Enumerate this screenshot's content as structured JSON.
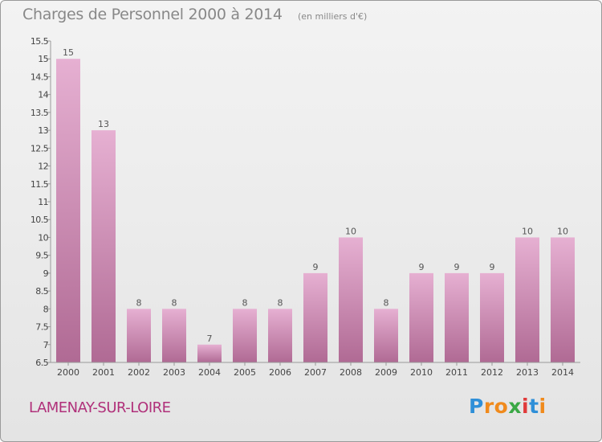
{
  "title": "Charges de Personnel 2000 à 2014",
  "subtitle": "(en milliers d'€)",
  "town": "LAMENAY-SUR-LOIRE",
  "logo": {
    "letters": [
      "P",
      "r",
      "o",
      "x",
      "i",
      "t",
      "i"
    ],
    "colors": [
      "#2f8fd8",
      "#f08a1c",
      "#f08a1c",
      "#3aa845",
      "#e03a3a",
      "#2f8fd8",
      "#f08a1c"
    ]
  },
  "colors": {
    "bar_top": "#e6b0d2",
    "bar_bottom": "#b06a94",
    "bar_label": "#555555",
    "axis_text": "#444444",
    "town": "#b0307a"
  },
  "chart_data": {
    "type": "bar",
    "title": "Charges de Personnel 2000 à 2014",
    "subtitle": "(en milliers d'€)",
    "categories": [
      "2000",
      "2001",
      "2002",
      "2003",
      "2004",
      "2005",
      "2006",
      "2007",
      "2008",
      "2009",
      "2010",
      "2011",
      "2012",
      "2013",
      "2014"
    ],
    "values": [
      15,
      13,
      8,
      8,
      7,
      8,
      8,
      9,
      10,
      8,
      9,
      9,
      9,
      10,
      10
    ],
    "ylim": [
      6.5,
      15.5
    ],
    "yticks": [
      "6.5",
      "7",
      "7.5",
      "8",
      "8.5",
      "9",
      "9.5",
      "10",
      "10.5",
      "11",
      "11.5",
      "12",
      "12.5",
      "13",
      "13.5",
      "14",
      "14.5",
      "15",
      "15.5"
    ],
    "grid": false,
    "xlabel": "",
    "ylabel": ""
  }
}
